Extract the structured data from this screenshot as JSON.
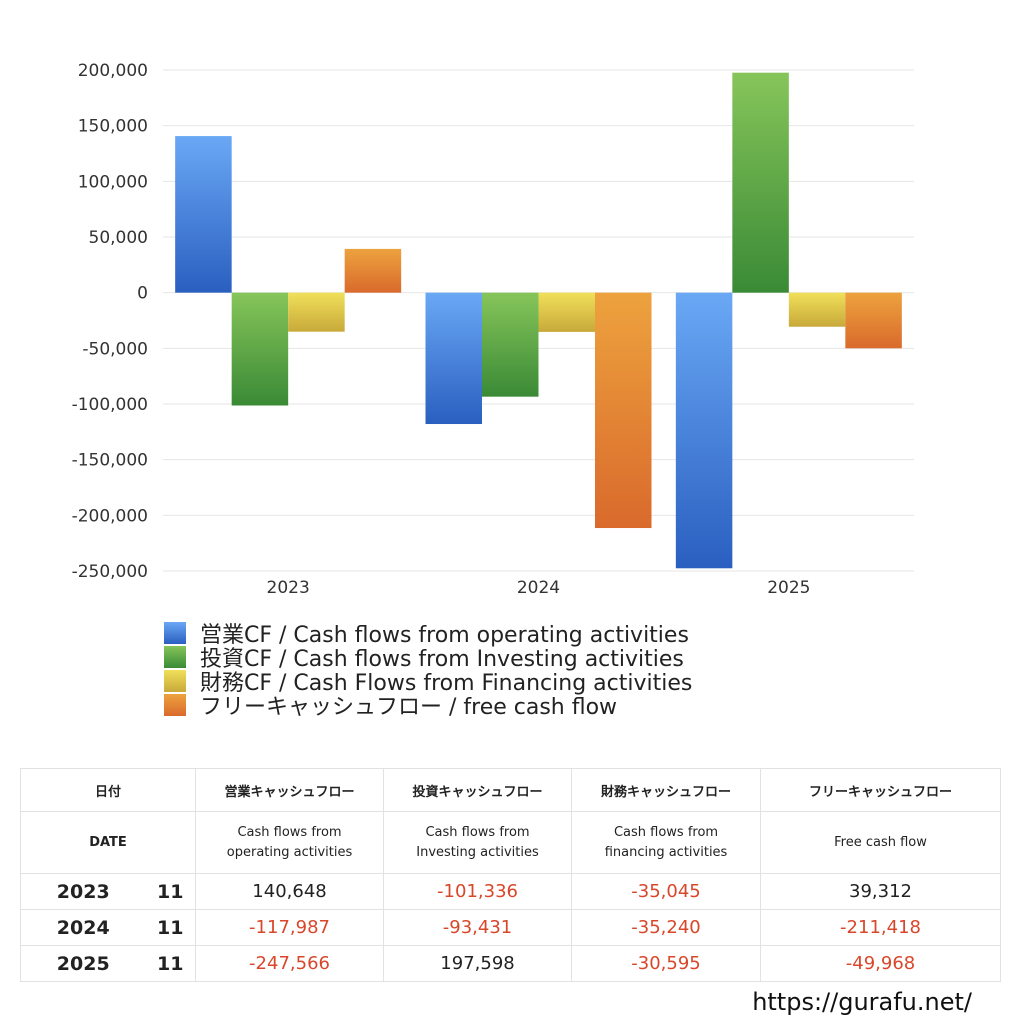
{
  "chart_data": {
    "type": "bar",
    "categories": [
      "2023",
      "2024",
      "2025"
    ],
    "series": [
      {
        "name": "営業CF / Cash flows from operating activities",
        "values": [
          140648,
          -117987,
          -247566
        ]
      },
      {
        "name": "投資CF / Cash flows from Investing activities",
        "values": [
          -101336,
          -93431,
          197598
        ]
      },
      {
        "name": "財務CF / Cash Flows from Financing activities",
        "values": [
          -35045,
          -35240,
          -30595
        ]
      },
      {
        "name": "フリーキャッシュフロー / free cash flow",
        "values": [
          39312,
          -211418,
          -49968
        ]
      }
    ],
    "colors": [
      {
        "top": "#6aa8f5",
        "bottom": "#2a5fc0"
      },
      {
        "top": "#86c55a",
        "bottom": "#3a8a36"
      },
      {
        "top": "#f0e05a",
        "bottom": "#c8a93a"
      },
      {
        "top": "#eda23e",
        "bottom": "#d96a2c"
      }
    ],
    "ylim": [
      -250000,
      200000
    ],
    "yticks": [
      200000,
      150000,
      100000,
      50000,
      0,
      -50000,
      -100000,
      -150000,
      -200000,
      -250000
    ],
    "ytick_labels": [
      "200,000",
      "150,000",
      "100,000",
      "50,000",
      "0",
      "-50,000",
      "-100,000",
      "-150,000",
      "-200,000",
      "-250,000"
    ],
    "grid": true,
    "legend_position": "bottom-left"
  },
  "table": {
    "header1": {
      "date": "日付",
      "operating": "営業キャッシュフロー",
      "investing": "投資キャッシュフロー",
      "financing": "財務キャッシュフロー",
      "free": "フリーキャッシュフロー"
    },
    "header2": {
      "date": "DATE",
      "operating_l1": "Cash flows from",
      "operating_l2": "operating activities",
      "investing_l1": "Cash flows from",
      "investing_l2": "Investing activities",
      "financing_l1": "Cash flows from",
      "financing_l2": "financing activities",
      "free": "Free cash flow"
    },
    "rows": [
      {
        "year": "2023",
        "month": "11",
        "operating": "140,648",
        "investing": "-101,336",
        "financing": "-35,045",
        "free": "39,312"
      },
      {
        "year": "2024",
        "month": "11",
        "operating": "-117,987",
        "investing": "-93,431",
        "financing": "-35,240",
        "free": "-211,418"
      },
      {
        "year": "2025",
        "month": "11",
        "operating": "-247,566",
        "investing": "197,598",
        "financing": "-30,595",
        "free": "-49,968"
      }
    ]
  },
  "site_url": "https://gurafu.net/"
}
